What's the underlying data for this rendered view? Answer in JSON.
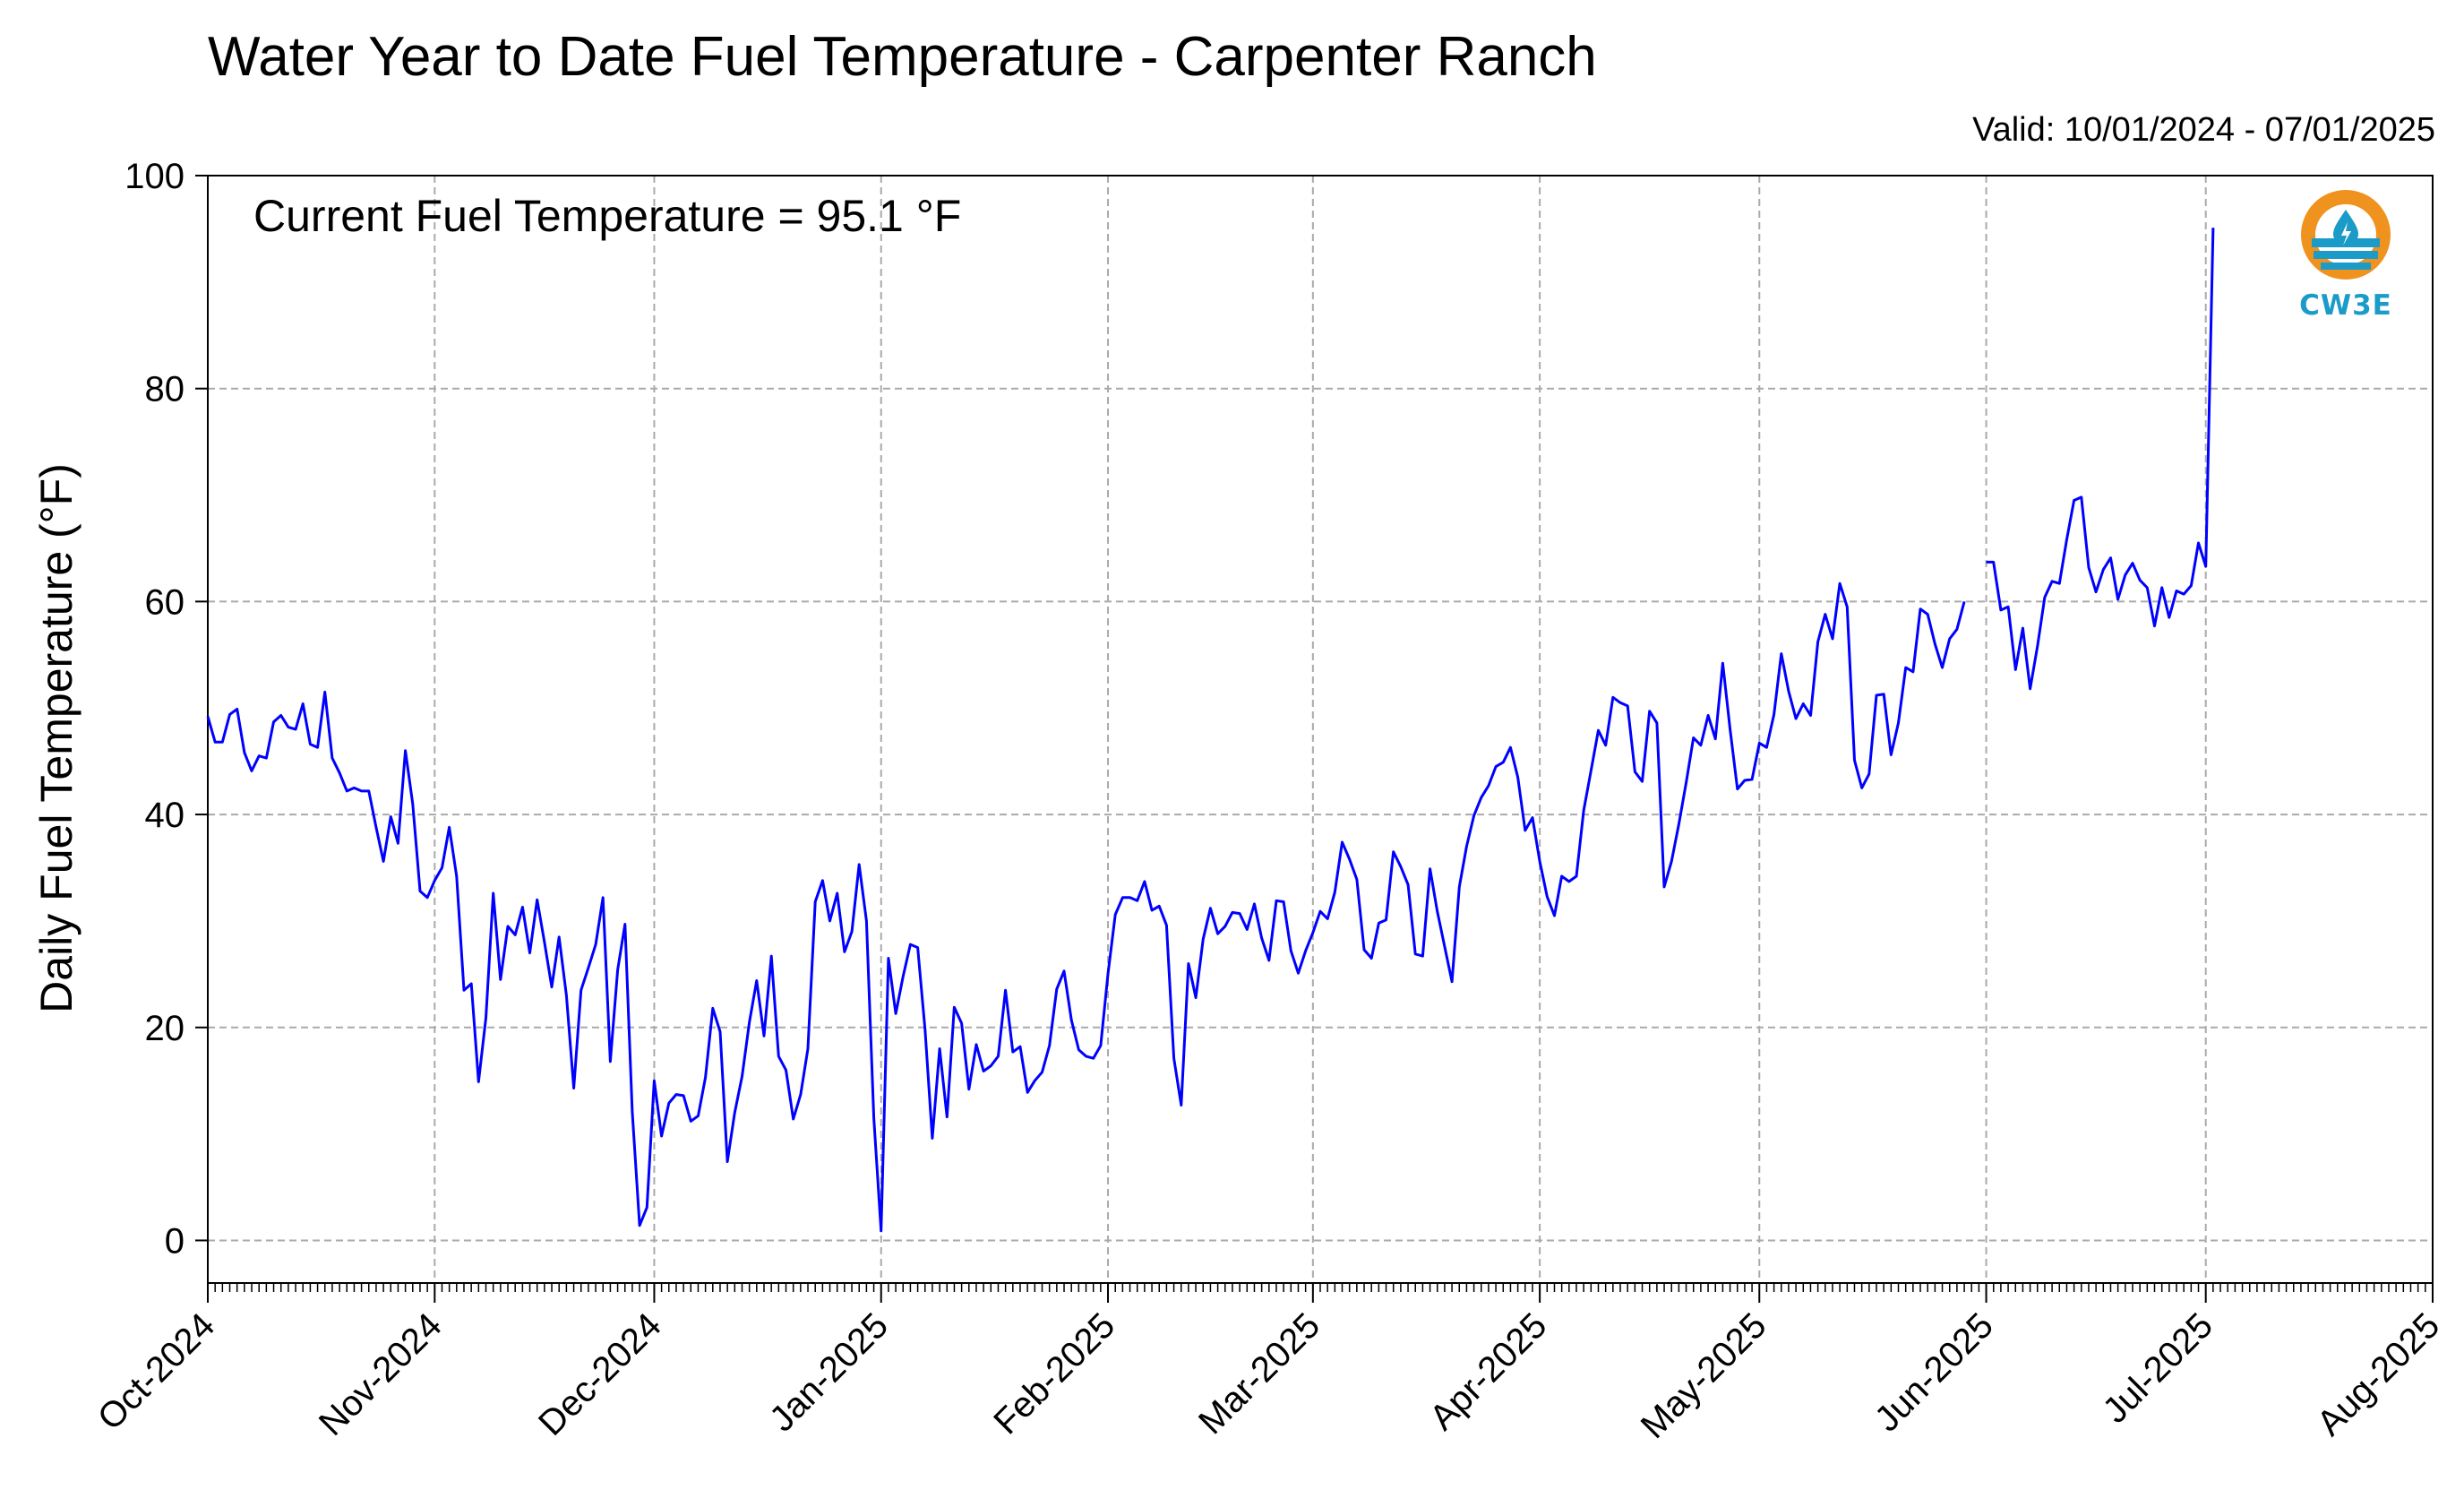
{
  "header": {
    "title": "Water Year to Date Fuel Temperature - Carpenter Ranch",
    "valid": "Valid: 10/01/2024 - 07/01/2025",
    "current": "Current Fuel Temperature = 95.1 °F"
  },
  "logo": {
    "text": "CW3E",
    "ring_color": "#f0921e",
    "wave_color": "#1b9bc7"
  },
  "chart_data": {
    "type": "line",
    "title": "Water Year to Date Fuel Temperature - Carpenter Ranch",
    "ylabel": "Daily Fuel Temperature (°F)",
    "xlabel": "",
    "ylim": [
      -4,
      100
    ],
    "xlim": [
      "2024-10-01",
      "2025-08-01"
    ],
    "yticks": [
      0,
      20,
      40,
      60,
      80,
      100
    ],
    "xticks": [
      {
        "date": "2024-10-01",
        "label": "Oct-2024"
      },
      {
        "date": "2024-11-01",
        "label": "Nov-2024"
      },
      {
        "date": "2024-12-01",
        "label": "Dec-2024"
      },
      {
        "date": "2025-01-01",
        "label": "Jan-2025"
      },
      {
        "date": "2025-02-01",
        "label": "Feb-2025"
      },
      {
        "date": "2025-03-01",
        "label": "Mar-2025"
      },
      {
        "date": "2025-04-01",
        "label": "Apr-2025"
      },
      {
        "date": "2025-05-01",
        "label": "May-2025"
      },
      {
        "date": "2025-06-01",
        "label": "Jun-2025"
      },
      {
        "date": "2025-07-01",
        "label": "Jul-2025"
      },
      {
        "date": "2025-08-01",
        "label": "Aug-2025"
      }
    ],
    "grid": true,
    "line_color": "#0000ff",
    "series": [
      {
        "segments": [
          {
            "start": "2024-10-01",
            "values": [
              49.2,
              46.8,
              46.8,
              49.4,
              49.9,
              45.8,
              44.1,
              45.5,
              45.3,
              48.7,
              49.3,
              48.2,
              48.0,
              50.4,
              46.6,
              46.3,
              51.5,
              45.3,
              43.9,
              42.2,
              42.5,
              42.2,
              42.2,
              38.8,
              35.6,
              39.8,
              37.3,
              46.0,
              41.0,
              32.8,
              32.2,
              33.8,
              35.0,
              38.8,
              34.2,
              23.5,
              24.1,
              14.9,
              20.9,
              32.6,
              24.5,
              29.5,
              28.7,
              31.3,
              27.0,
              32.0,
              28.0,
              23.8,
              28.5,
              23.0,
              14.3,
              23.5,
              25.6,
              27.8,
              32.2,
              16.8,
              25.4,
              29.7,
              12.1,
              1.4,
              3.1,
              15.0,
              9.8,
              12.9,
              13.7,
              13.6,
              11.2,
              11.7,
              15.3,
              21.8,
              19.6,
              7.4,
              12.0,
              15.4,
              20.5,
              24.4,
              19.2,
              26.7,
              17.3,
              16.0,
              11.4,
              13.7,
              18.0,
              31.8,
              33.8,
              30.0,
              32.6,
              27.1,
              29.0,
              35.3,
              30.0,
              11.5,
              0.9,
              26.5,
              21.3,
              24.8,
              27.8,
              27.5,
              19.8,
              9.6,
              18.0,
              11.6,
              21.9,
              20.4,
              14.2,
              18.4,
              15.9,
              16.4,
              17.3,
              23.5,
              17.7,
              18.2,
              13.9,
              15.0,
              15.8,
              18.3,
              23.6,
              25.3,
              20.7,
              17.9,
              17.3,
              17.1,
              18.3,
              25.0,
              30.6,
              32.2,
              32.2,
              31.9,
              33.7,
              31.0,
              31.4,
              29.6,
              17.1,
              12.7,
              26.0,
              22.8,
              28.3,
              31.2,
              28.8,
              29.5,
              30.8,
              30.7,
              29.2,
              31.6,
              28.4,
              26.3,
              31.9,
              31.8,
              27.2,
              25.1,
              27.2,
              28.9,
              30.9,
              30.2,
              32.7,
              37.4,
              35.8,
              33.9,
              27.3,
              26.5,
              29.8,
              30.1,
              36.5,
              35.1,
              33.4,
              26.9,
              26.7,
              34.9,
              30.9,
              27.6,
              24.3,
              33.2,
              37.0,
              39.9,
              41.6,
              42.7,
              44.5,
              44.9,
              46.3,
              43.5,
              38.5,
              39.7,
              35.6,
              32.3,
              30.5,
              34.2,
              33.7,
              34.2,
              40.4,
              44.1,
              47.9,
              46.5,
              51.0,
              50.5,
              50.2,
              44.0,
              43.1,
              49.7,
              48.6,
              33.2,
              35.6,
              39.1,
              43.0,
              47.2,
              46.5,
              49.3,
              47.1,
              54.2,
              48.0,
              42.4,
              43.2,
              43.3,
              46.7,
              46.3,
              49.4,
              55.1,
              51.6,
              49.0,
              50.4,
              49.3,
              56.2,
              58.8,
              56.5,
              61.7,
              59.5,
              45.1,
              42.5,
              43.8,
              51.2,
              51.3,
              45.6,
              48.6,
              53.8,
              53.4,
              59.3,
              58.8,
              56.0,
              53.8,
              56.5,
              57.4,
              60.0
            ]
          },
          {
            "start": "2025-06-01",
            "values": [
              63.7,
              63.7,
              59.2,
              59.5,
              53.6,
              57.5,
              51.8,
              55.8,
              60.4,
              61.9,
              61.7,
              65.8,
              69.5,
              69.8,
              63.2,
              60.9,
              63.0,
              64.1,
              60.2,
              62.5,
              63.6,
              62.0,
              61.3,
              57.7,
              61.3,
              58.5,
              61.0,
              60.7,
              61.5,
              65.5,
              63.3,
              95.1
            ]
          }
        ]
      }
    ]
  }
}
